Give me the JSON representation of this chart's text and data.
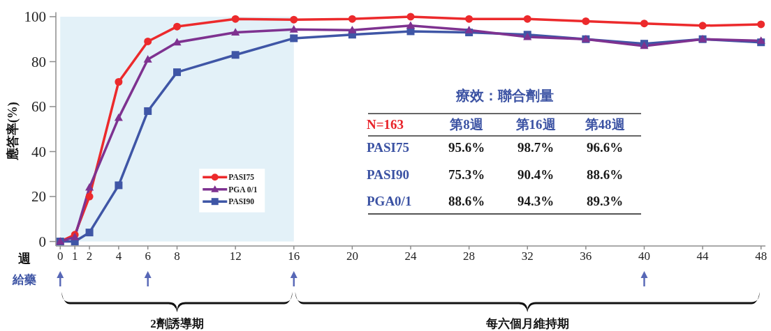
{
  "chart_data": {
    "type": "line",
    "title": "療效：聯合劑量",
    "xlabel": "週",
    "ylabel": "應答率(%)",
    "x": [
      0,
      1,
      2,
      4,
      6,
      8,
      12,
      16,
      20,
      24,
      28,
      32,
      36,
      40,
      44,
      48
    ],
    "series": [
      {
        "name": "PASI75",
        "color": "#ec2a2c",
        "marker": "circle",
        "values": [
          0,
          3,
          20,
          71,
          89,
          95.6,
          99,
          98.7,
          99,
          100,
          99,
          99,
          98,
          97,
          96,
          96.6
        ]
      },
      {
        "name": "PASI90",
        "color": "#3f56a6",
        "marker": "square",
        "values": [
          0,
          0,
          4,
          25,
          58,
          75.3,
          83,
          90.4,
          92,
          93.5,
          93,
          92,
          90,
          88,
          90,
          88.6
        ]
      },
      {
        "name": "PGA 0/1",
        "color": "#7e3290",
        "marker": "triangle",
        "values": [
          0,
          2,
          24,
          55,
          81,
          88.6,
          93,
          94.3,
          94,
          96,
          94,
          91,
          90,
          87,
          90,
          89.3
        ]
      }
    ],
    "xlim": [
      -0.3,
      48.3
    ],
    "ylim": [
      -2,
      102
    ],
    "xticks": [
      0,
      1,
      2,
      4,
      6,
      8,
      12,
      16,
      20,
      24,
      28,
      32,
      36,
      40,
      44,
      48
    ],
    "yticks": [
      0,
      20,
      40,
      60,
      80,
      100
    ],
    "legend": "bottom left",
    "bands": [
      {
        "axis": "x",
        "from": 0,
        "to": 16,
        "color": "#e3f1f8"
      }
    ],
    "annotations": [
      "N=163",
      "第8週",
      "第16週",
      "第48週",
      "PASI75",
      "95.6%",
      "98.7%",
      "96.6%",
      "PASI90",
      "75.3%",
      "90.4%",
      "88.6%",
      "PGA0/1",
      "88.6%",
      "94.3%",
      "89.3%",
      "2劑誘導期",
      "每六個月維持期",
      "給藥"
    ]
  }
}
